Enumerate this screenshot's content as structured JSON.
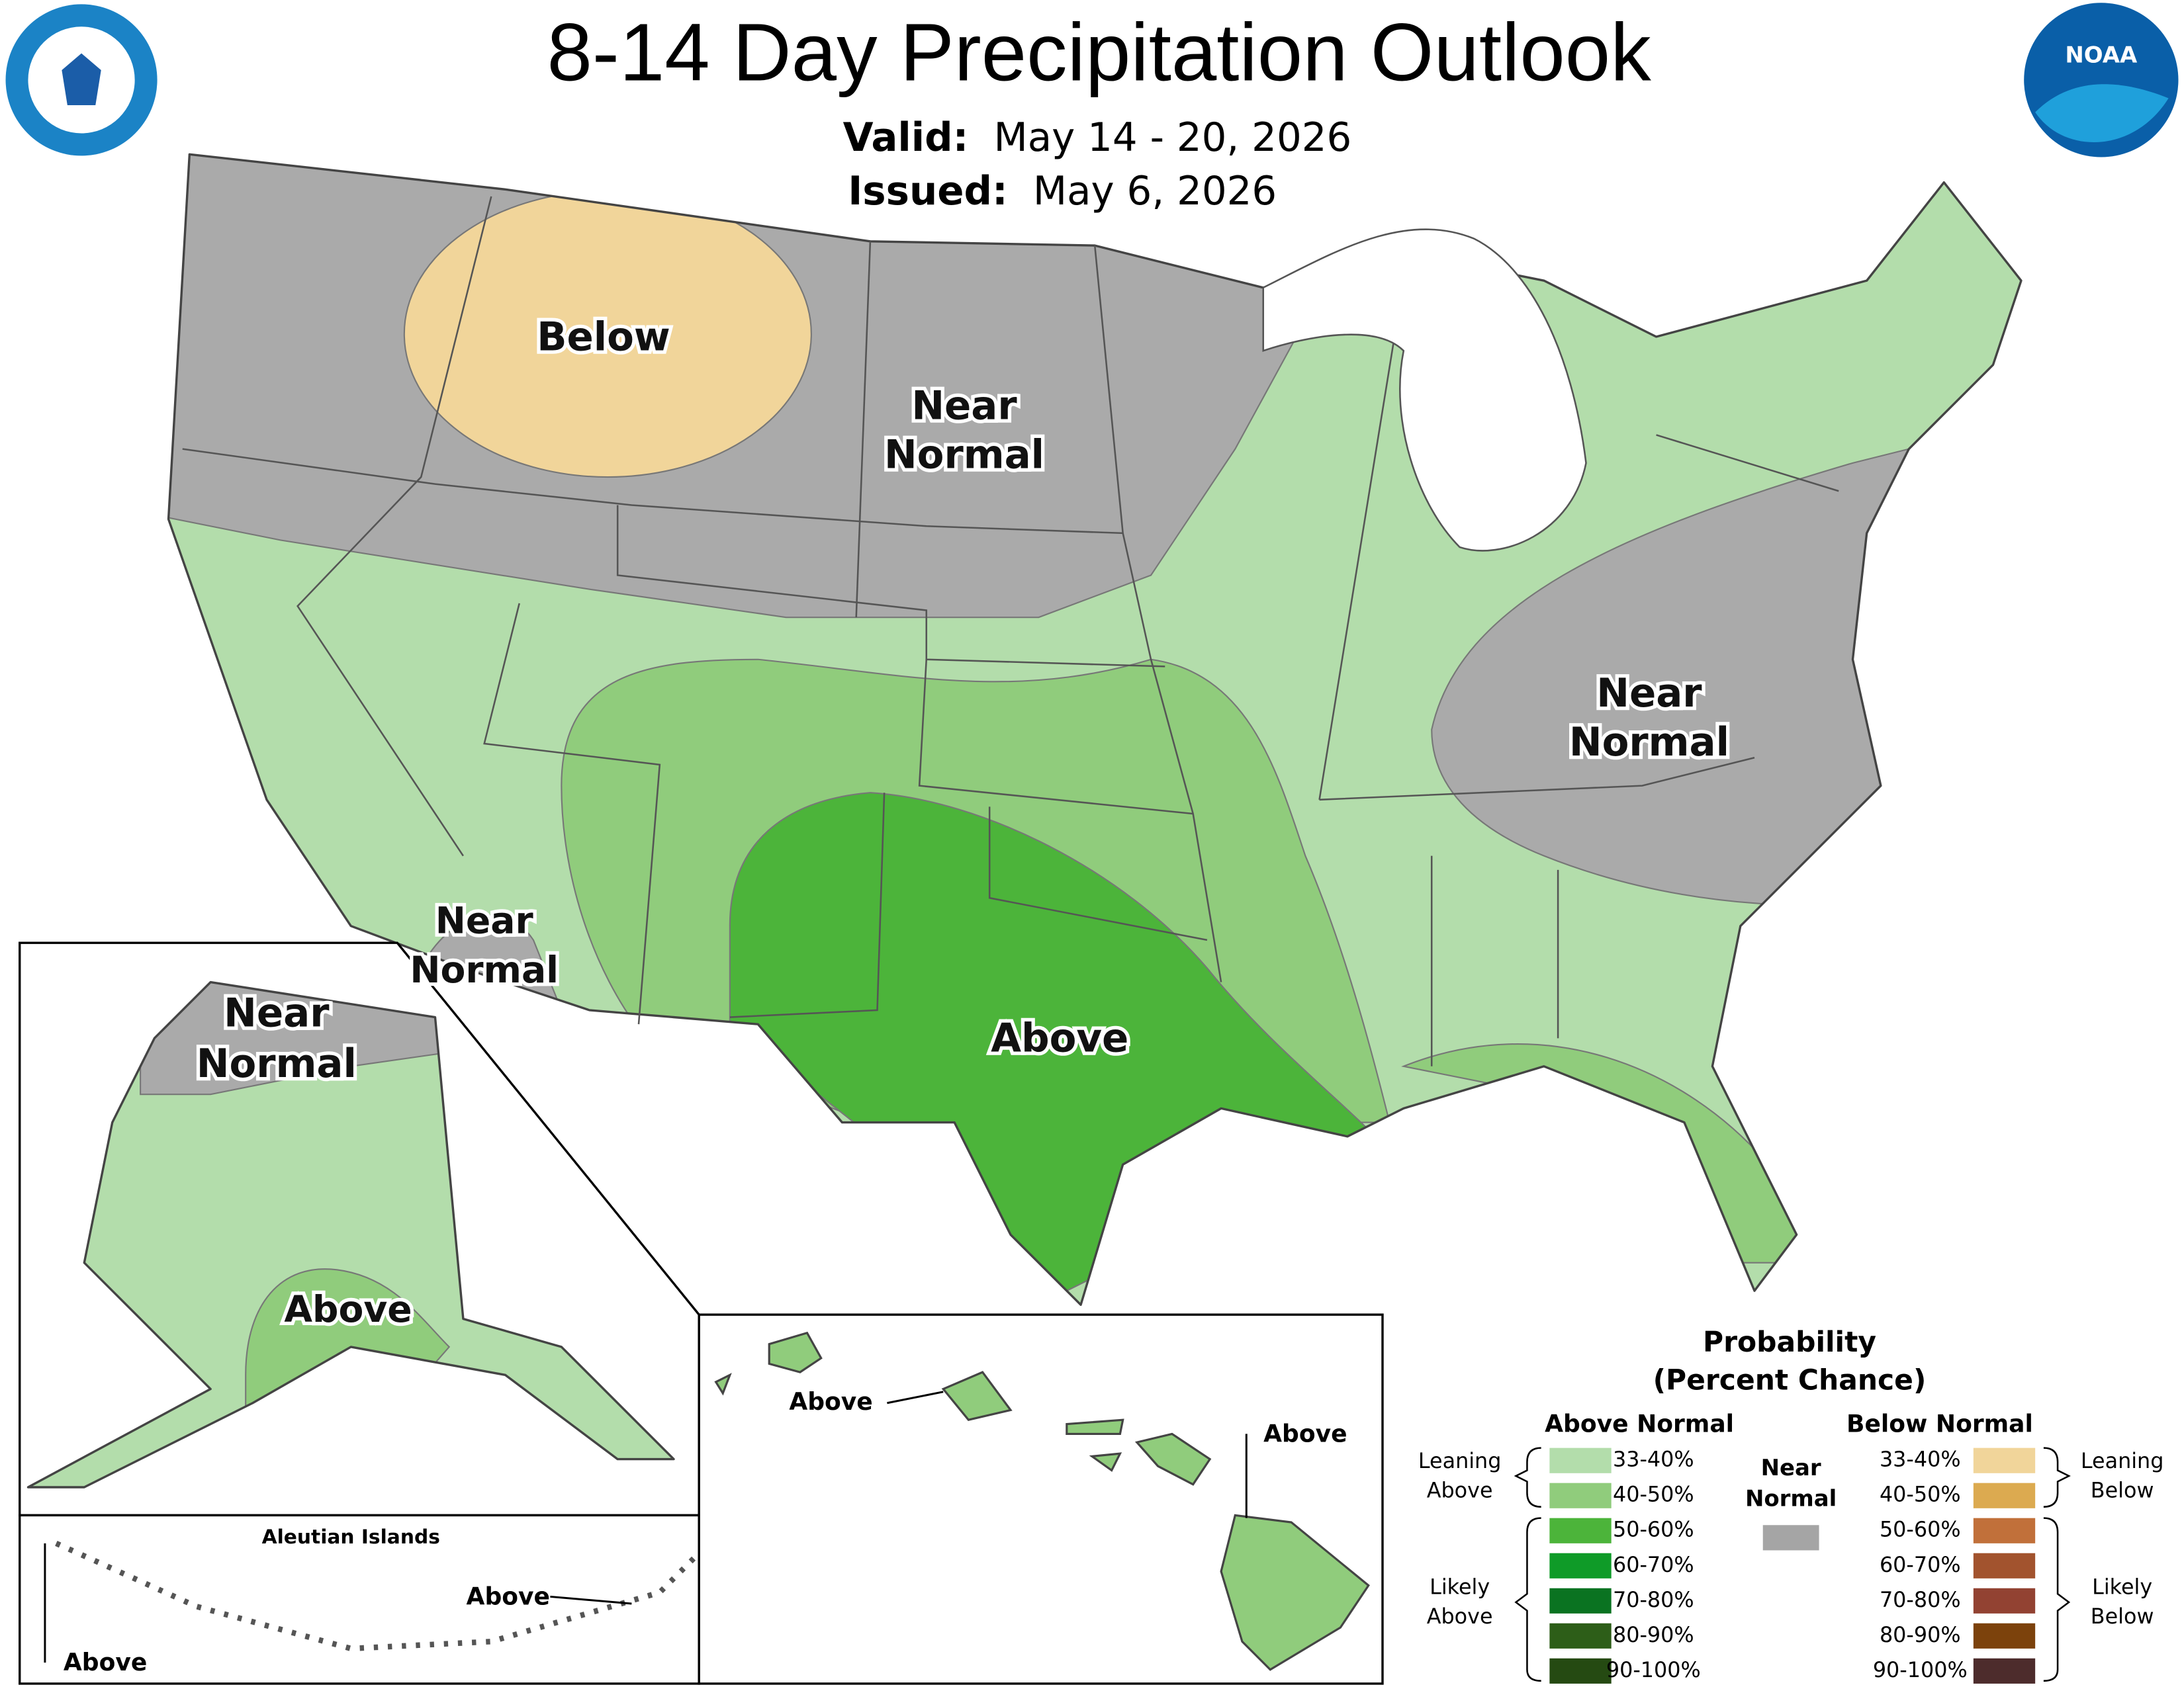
{
  "header": {
    "title": "8-14 Day Precipitation Outlook",
    "valid_label": "Valid:",
    "valid": "May 14 - 20, 2026",
    "issued_label": "Issued:",
    "issued": "May 6, 2026"
  },
  "logos": {
    "noaa": "NOAA"
  },
  "map_labels": [
    {
      "lines": [
        "Below"
      ]
    },
    {
      "lines": [
        "Near",
        "Normal"
      ]
    },
    {
      "lines": [
        "Near",
        "Normal"
      ]
    },
    {
      "lines": [
        "Near",
        "Normal"
      ]
    },
    {
      "lines": [
        "Above"
      ]
    },
    {
      "lines": [
        "Near",
        "Normal"
      ]
    },
    {
      "lines": [
        "Above"
      ]
    },
    {
      "lines": [
        "Above"
      ]
    },
    {
      "lines": [
        "Above"
      ]
    },
    {
      "lines": [
        "Above"
      ]
    },
    {
      "lines": [
        "Above"
      ]
    }
  ],
  "aleutian_title": "Aleutian Islands",
  "legend": {
    "title": [
      "Probability",
      "(Percent Chance)"
    ],
    "above": {
      "heading": "Above Normal",
      "items": [
        {
          "label": "33-40%",
          "color": "#b3ddab"
        },
        {
          "label": "40-50%",
          "color": "#90cc7c"
        },
        {
          "label": "50-60%",
          "color": "#4cb43a"
        },
        {
          "label": "60-70%",
          "color": "#0f9b28"
        },
        {
          "label": "70-80%",
          "color": "#0a7321"
        },
        {
          "label": "80-90%",
          "color": "#2d5e18"
        },
        {
          "label": "90-100%",
          "color": "#254a12"
        }
      ],
      "leaning": [
        "Leaning",
        "Above"
      ],
      "likely": [
        "Likely",
        "Above"
      ]
    },
    "near": {
      "heading": [
        "Near",
        "Normal"
      ],
      "color": "#a5a5a5"
    },
    "below": {
      "heading": "Below Normal",
      "items": [
        {
          "label": "33-40%",
          "color": "#f1d59a"
        },
        {
          "label": "40-50%",
          "color": "#dcaa50"
        },
        {
          "label": "50-60%",
          "color": "#c1703a"
        },
        {
          "label": "60-70%",
          "color": "#a2532e"
        },
        {
          "label": "70-80%",
          "color": "#924232"
        },
        {
          "label": "80-90%",
          "color": "#7c420c"
        },
        {
          "label": "90-100%",
          "color": "#4d2c2c"
        }
      ],
      "leaning": [
        "Leaning",
        "Below"
      ],
      "likely": [
        "Likely",
        "Below"
      ]
    }
  }
}
